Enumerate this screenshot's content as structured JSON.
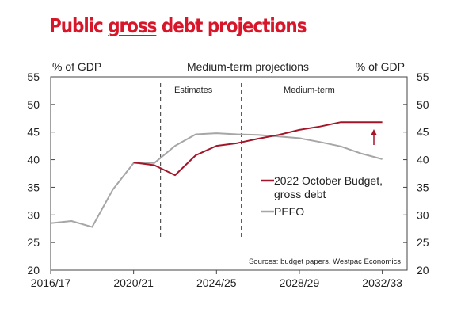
{
  "page": {
    "title_part1": "Public ",
    "title_part2": "gross",
    "title_part3": " debt projections"
  },
  "chart_data": {
    "type": "line",
    "left_axis_label": "% of GDP",
    "right_axis_label": "% of GDP",
    "header_center": "Medium-term projections",
    "region_labels": [
      "Estimates",
      "Medium-term"
    ],
    "ylim": [
      20,
      55
    ],
    "yticks": [
      20,
      25,
      30,
      35,
      40,
      45,
      50,
      55
    ],
    "x_tick_labels": [
      "2016/17",
      "2020/21",
      "2024/25",
      "2028/29",
      "2032/33"
    ],
    "x_tick_positions": [
      2016,
      2020,
      2024,
      2028,
      2032
    ],
    "xlim": [
      2016,
      2033.2
    ],
    "vlines": [
      2021.3,
      2025.2
    ],
    "series": [
      {
        "name": "2022 October Budget, gross debt",
        "legend_line1": "2022 October Budget,",
        "legend_line2": "gross debt",
        "color": "#a3162a",
        "x": [
          2020,
          2021,
          2022,
          2023,
          2024,
          2025,
          2026,
          2027,
          2028,
          2029,
          2030,
          2031,
          2032
        ],
        "y": [
          39.5,
          39.0,
          37.2,
          40.8,
          42.5,
          43.0,
          43.8,
          44.5,
          45.4,
          46.0,
          46.8,
          46.8,
          46.8
        ]
      },
      {
        "name": "PEFO",
        "legend_line1": "PEFO",
        "color": "#a6a6a6",
        "x": [
          2016,
          2017,
          2018,
          2019,
          2020,
          2021,
          2022,
          2023,
          2024,
          2025,
          2026,
          2027,
          2028,
          2029,
          2030,
          2031,
          2032
        ],
        "y": [
          28.5,
          28.9,
          27.8,
          34.6,
          39.4,
          39.4,
          42.5,
          44.6,
          44.8,
          44.6,
          44.5,
          44.2,
          43.9,
          43.2,
          42.4,
          41.1,
          40.1
        ]
      }
    ],
    "annotation": "upward-arrow",
    "source": "Sources: budget papers, Westpac Economics",
    "grid": false,
    "legend_position": "center-right"
  }
}
